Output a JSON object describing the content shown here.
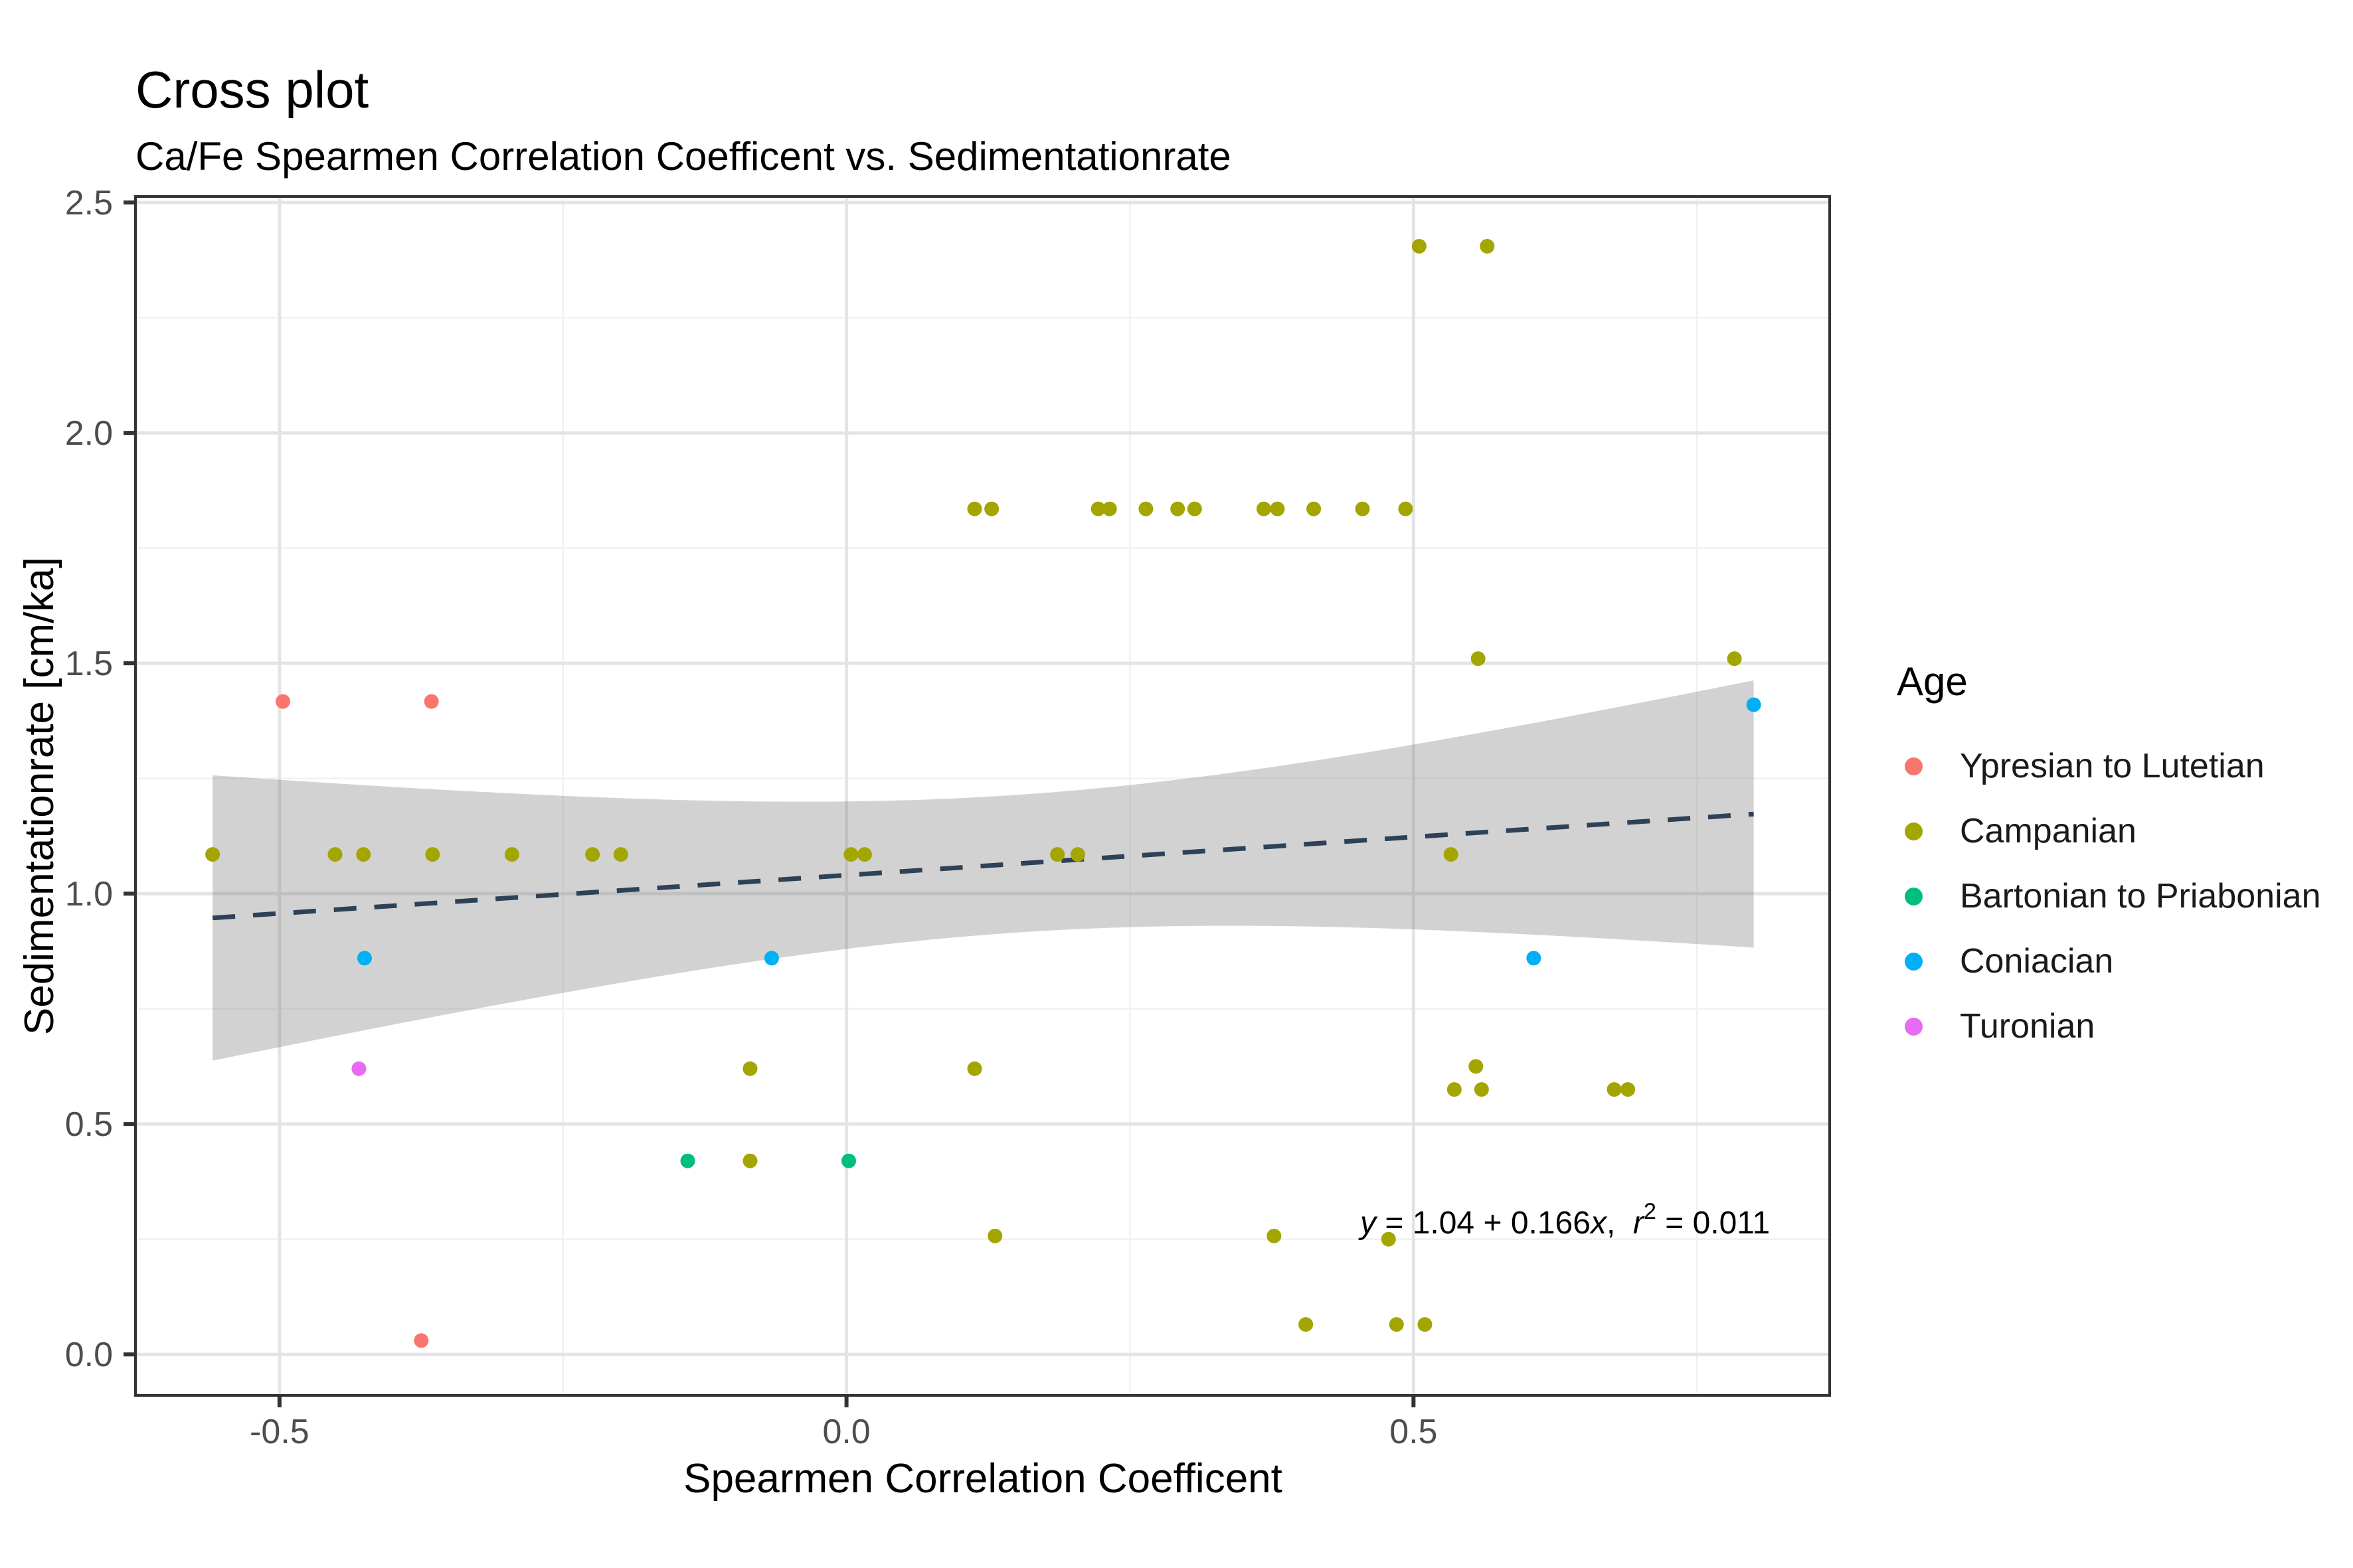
{
  "title": "Cross plot",
  "subtitle": "Ca/Fe Spearmen Correlation Coefficent vs. Sedimentationrate",
  "x_axis": {
    "label": "Spearmen Correlation Coefficent"
  },
  "y_axis": {
    "label": "Sedimentationrate [cm/ka]"
  },
  "legend": {
    "title": "Age",
    "items": [
      {
        "label": "Ypresian to Lutetian",
        "color": "#F8766D"
      },
      {
        "label": "Campanian",
        "color": "#A3A500"
      },
      {
        "label": "Bartonian to Priabonian",
        "color": "#00BF7D"
      },
      {
        "label": "Coniacian",
        "color": "#00B0F6"
      },
      {
        "label": "Turonian",
        "color": "#E76BF3"
      }
    ]
  },
  "annotation": {
    "full_text": "y = 1.04 + 0.166x,  r2 = 0.011",
    "y_var": "y",
    "eq_mid": " = 1.04 + 0.166",
    "x_var": "x",
    "comma": ",  ",
    "r_var": "r",
    "sup": "2",
    "tail": " = 0.011"
  },
  "chart_data": {
    "type": "scatter",
    "title": "Cross plot",
    "subtitle": "Ca/Fe Spearmen Correlation Coefficent vs. Sedimentationrate",
    "xlabel": "Spearmen Correlation Coefficent",
    "ylabel": "Sedimentationrate [cm/ka]",
    "xlim": [
      -0.627,
      0.867
    ],
    "ylim": [
      -0.089,
      2.513
    ],
    "x_ticks": [
      {
        "label": "-0.5",
        "value": -0.5
      },
      {
        "label": "0.0",
        "value": 0.0
      },
      {
        "label": "0.5",
        "value": 0.5
      }
    ],
    "y_ticks": [
      {
        "label": "0.0",
        "value": 0.0
      },
      {
        "label": "0.5",
        "value": 0.5
      },
      {
        "label": "1.0",
        "value": 1.0
      },
      {
        "label": "1.5",
        "value": 1.5
      },
      {
        "label": "2.0",
        "value": 2.0
      },
      {
        "label": "2.5",
        "value": 2.5
      }
    ],
    "x_minor": [
      -0.25,
      0.25,
      0.75
    ],
    "y_minor": [
      0.25,
      0.75,
      1.25,
      1.75,
      2.25
    ],
    "grid": {
      "major_color": "#E4E4E4",
      "minor_color": "#F1F1F1",
      "panel_border": "#333333",
      "background": "#ffffff"
    },
    "series": [
      {
        "name": "Ypresian to Lutetian",
        "color": "#F8766D",
        "points": [
          [
            -0.497,
            1.417
          ],
          [
            -0.366,
            1.417
          ],
          [
            -0.375,
            0.03
          ]
        ]
      },
      {
        "name": "Campanian",
        "color": "#A3A500",
        "points": [
          [
            -0.559,
            1.085
          ],
          [
            -0.451,
            1.085
          ],
          [
            -0.426,
            1.085
          ],
          [
            -0.365,
            1.085
          ],
          [
            -0.295,
            1.085
          ],
          [
            -0.224,
            1.085
          ],
          [
            -0.199,
            1.085
          ],
          [
            0.004,
            1.085
          ],
          [
            0.016,
            1.085
          ],
          [
            0.186,
            1.085
          ],
          [
            0.204,
            1.085
          ],
          [
            0.533,
            1.085
          ],
          [
            0.113,
            1.835
          ],
          [
            0.128,
            1.835
          ],
          [
            0.222,
            1.835
          ],
          [
            0.232,
            1.835
          ],
          [
            0.264,
            1.835
          ],
          [
            0.292,
            1.835
          ],
          [
            0.307,
            1.835
          ],
          [
            0.368,
            1.835
          ],
          [
            0.38,
            1.835
          ],
          [
            0.412,
            1.835
          ],
          [
            0.455,
            1.835
          ],
          [
            0.493,
            1.835
          ],
          [
            0.505,
            2.405
          ],
          [
            0.565,
            2.405
          ],
          [
            0.557,
            1.51
          ],
          [
            0.783,
            1.51
          ],
          [
            -0.085,
            0.62
          ],
          [
            0.113,
            0.62
          ],
          [
            0.555,
            0.625
          ],
          [
            0.536,
            0.575
          ],
          [
            0.56,
            0.575
          ],
          [
            0.677,
            0.575
          ],
          [
            0.689,
            0.575
          ],
          [
            -0.085,
            0.42
          ],
          [
            0.131,
            0.257
          ],
          [
            0.377,
            0.257
          ],
          [
            0.478,
            0.25
          ],
          [
            0.405,
            0.065
          ],
          [
            0.485,
            0.065
          ],
          [
            0.51,
            0.065
          ]
        ]
      },
      {
        "name": "Bartonian to Priabonian",
        "color": "#00BF7D",
        "points": [
          [
            -0.14,
            0.42
          ],
          [
            0.002,
            0.42
          ]
        ]
      },
      {
        "name": "Coniacian",
        "color": "#00B0F6",
        "points": [
          [
            -0.425,
            0.86
          ],
          [
            -0.066,
            0.86
          ],
          [
            0.606,
            0.86
          ],
          [
            0.8,
            1.41
          ]
        ]
      },
      {
        "name": "Turonian",
        "color": "#E76BF3",
        "points": [
          [
            -0.43,
            0.62
          ]
        ]
      }
    ],
    "regression": {
      "equation_text": "y = 1.04 + 0.166x,  r2 = 0.011",
      "intercept": 1.04,
      "slope": 0.166,
      "r_squared": 0.011,
      "x_range": [
        -0.559,
        0.8
      ],
      "line_color": "#2E4156",
      "band_color": "rgba(127,127,127,0.35)",
      "ci_half_width": {
        "c": 0.0223,
        "d": 0.1464,
        "x_center": 0.15
      }
    },
    "point_radius": 11
  }
}
